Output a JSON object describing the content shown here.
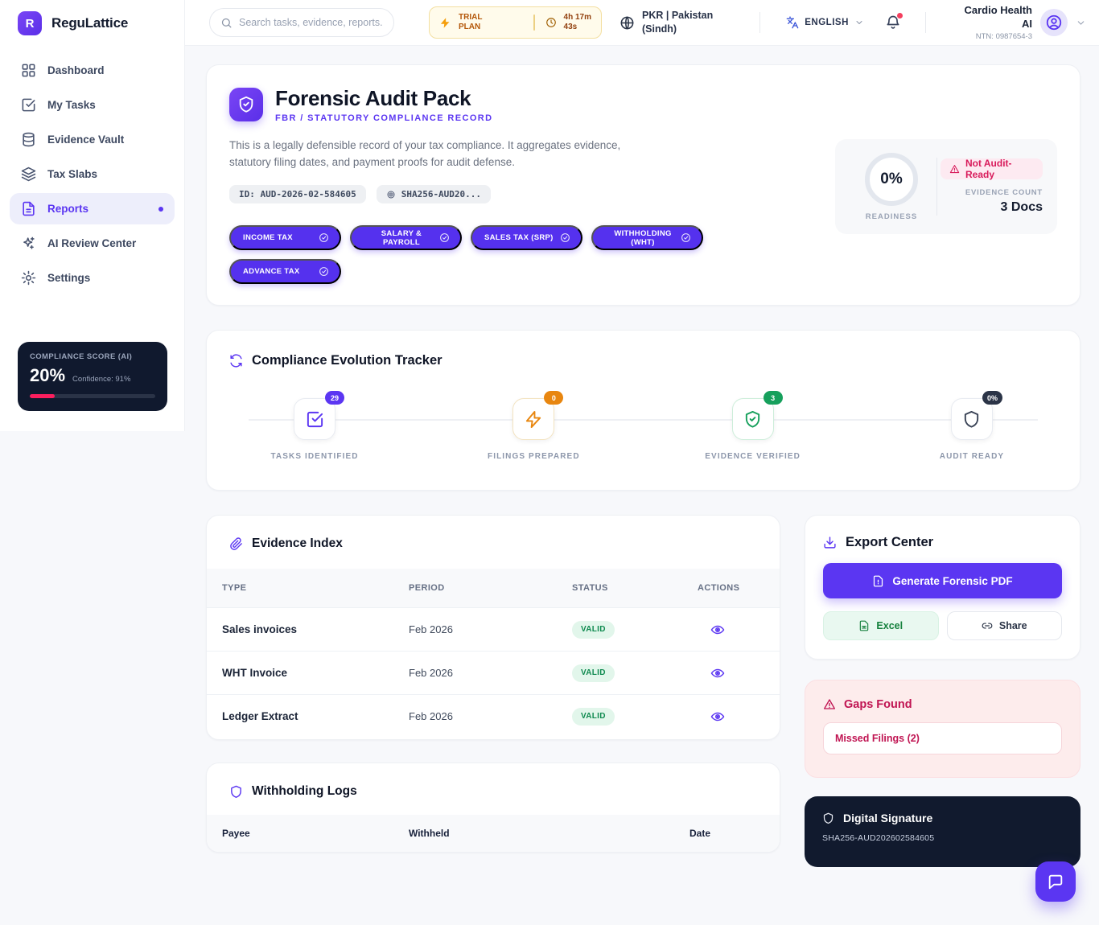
{
  "brand": {
    "name": "ReguLattice",
    "logo_letter": "R"
  },
  "topbar": {
    "search_placeholder": "Search tasks, evidence, reports...",
    "trial_plan_line1": "TRIAL",
    "trial_plan_line2": "PLAN",
    "timer_line1": "4h 17m",
    "timer_line2": "43s",
    "locale_line1": "PKR | Pakistan",
    "locale_line2": "(Sindh)",
    "language": "ENGLISH",
    "account_name_line1": "Cardio Health",
    "account_name_line2": "AI",
    "account_ntn": "NTN: 0987654-3"
  },
  "sidebar": {
    "items": [
      {
        "label": "Dashboard"
      },
      {
        "label": "My Tasks"
      },
      {
        "label": "Evidence Vault"
      },
      {
        "label": "Tax Slabs"
      },
      {
        "label": "Reports"
      },
      {
        "label": "AI Review Center"
      },
      {
        "label": "Settings"
      }
    ],
    "score_card": {
      "title": "COMPLIANCE SCORE (AI)",
      "score": "20%",
      "confidence": "Confidence: 91%",
      "progress_pct": 20
    }
  },
  "header": {
    "title": "Forensic Audit Pack",
    "subtitle": "FBR / STATUTORY COMPLIANCE RECORD",
    "description": "This is a legally defensible record of your tax compliance. It aggregates evidence, statutory filing dates, and payment proofs for audit defense.",
    "id_badge": "ID: AUD-2026-02-584605",
    "hash_badge": "SHA256-AUD20...",
    "chips": [
      {
        "label": "INCOME TAX"
      },
      {
        "label": "SALARY & PAYROLL"
      },
      {
        "label": "SALES TAX (SRP)"
      },
      {
        "label": "WITHHOLDING (WHT)"
      },
      {
        "label": "ADVANCE TAX"
      }
    ],
    "readiness": {
      "value": "0%",
      "label": "READINESS",
      "status_badge": "Not Audit-Ready",
      "evidence_count_label": "EVIDENCE COUNT",
      "evidence_count": "3 Docs"
    }
  },
  "tracker": {
    "title": "Compliance Evolution Tracker",
    "steps": [
      {
        "label": "TASKS IDENTIFIED",
        "badge": "29",
        "color": "#5b36f2"
      },
      {
        "label": "FILINGS PREPARED",
        "badge": "0",
        "color": "#e8860f"
      },
      {
        "label": "EVIDENCE VERIFIED",
        "badge": "3",
        "color": "#16a05c"
      },
      {
        "label": "AUDIT READY",
        "badge": "0%",
        "color": "#2b3447"
      }
    ]
  },
  "evidence_index": {
    "title": "Evidence Index",
    "columns": [
      "TYPE",
      "PERIOD",
      "STATUS",
      "ACTIONS"
    ],
    "rows": [
      {
        "type": "Sales invoices",
        "period": "Feb 2026",
        "status": "VALID"
      },
      {
        "type": "WHT Invoice",
        "period": "Feb 2026",
        "status": "VALID"
      },
      {
        "type": "Ledger Extract",
        "period": "Feb 2026",
        "status": "VALID"
      }
    ]
  },
  "withholding_logs": {
    "title": "Withholding Logs",
    "columns": [
      "Payee",
      "Withheld",
      "Date"
    ]
  },
  "export_center": {
    "title": "Export Center",
    "pdf_button": "Generate Forensic PDF",
    "excel_button": "Excel",
    "share_button": "Share"
  },
  "gaps": {
    "title": "Gaps Found",
    "item": "Missed Filings (2)"
  },
  "digital_signature": {
    "title": "Digital Signature",
    "hash": "SHA256-AUD202602584605"
  },
  "colors": {
    "accent": "#5b36f2",
    "dark_navy": "#111a2e",
    "danger": "#d81b5b",
    "success": "#16a05c",
    "warning_orange": "#e8860f",
    "score_bar": "#fb1e5e"
  }
}
